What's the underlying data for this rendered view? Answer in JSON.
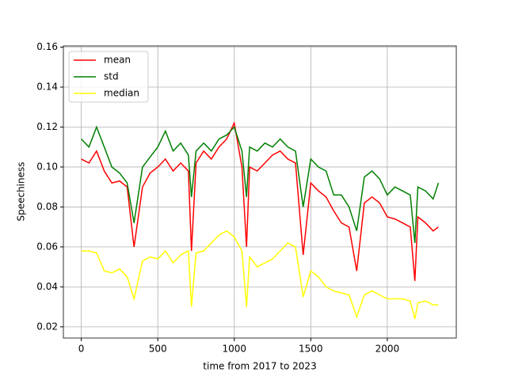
{
  "chart_data": {
    "type": "line",
    "x_label": "time from 2017 to 2023",
    "y_label": "Speechiness",
    "x": [
      0,
      50,
      100,
      150,
      200,
      250,
      300,
      345,
      400,
      450,
      500,
      550,
      600,
      650,
      700,
      720,
      750,
      800,
      850,
      900,
      950,
      1000,
      1050,
      1080,
      1100,
      1150,
      1200,
      1250,
      1300,
      1350,
      1400,
      1450,
      1500,
      1550,
      1600,
      1650,
      1700,
      1750,
      1800,
      1850,
      1900,
      1950,
      2000,
      2050,
      2100,
      2150,
      2180,
      2200,
      2250,
      2300,
      2334
    ],
    "series": [
      {
        "name": "mean",
        "color": "#ff0000",
        "values": [
          0.104,
          0.102,
          0.108,
          0.098,
          0.092,
          0.093,
          0.09,
          0.06,
          0.09,
          0.097,
          0.1,
          0.104,
          0.098,
          0.102,
          0.098,
          0.058,
          0.102,
          0.108,
          0.104,
          0.11,
          0.114,
          0.122,
          0.1,
          0.06,
          0.1,
          0.098,
          0.102,
          0.106,
          0.108,
          0.104,
          0.102,
          0.056,
          0.092,
          0.088,
          0.085,
          0.078,
          0.072,
          0.07,
          0.048,
          0.082,
          0.085,
          0.082,
          0.075,
          0.074,
          0.072,
          0.07,
          0.043,
          0.075,
          0.072,
          0.068,
          0.07
        ]
      },
      {
        "name": "std",
        "color": "#008000",
        "values": [
          0.114,
          0.11,
          0.12,
          0.11,
          0.1,
          0.097,
          0.092,
          0.072,
          0.1,
          0.105,
          0.11,
          0.118,
          0.108,
          0.112,
          0.106,
          0.085,
          0.108,
          0.112,
          0.108,
          0.114,
          0.116,
          0.12,
          0.108,
          0.085,
          0.11,
          0.108,
          0.112,
          0.11,
          0.114,
          0.11,
          0.108,
          0.08,
          0.104,
          0.1,
          0.098,
          0.086,
          0.086,
          0.08,
          0.068,
          0.095,
          0.098,
          0.094,
          0.086,
          0.09,
          0.088,
          0.086,
          0.062,
          0.09,
          0.088,
          0.084,
          0.092
        ]
      },
      {
        "name": "median",
        "color": "#ffff00",
        "values": [
          0.058,
          0.058,
          0.057,
          0.048,
          0.047,
          0.049,
          0.045,
          0.034,
          0.053,
          0.055,
          0.054,
          0.058,
          0.052,
          0.056,
          0.058,
          0.03,
          0.057,
          0.058,
          0.062,
          0.066,
          0.068,
          0.065,
          0.058,
          0.03,
          0.055,
          0.05,
          0.052,
          0.054,
          0.058,
          0.062,
          0.06,
          0.035,
          0.048,
          0.045,
          0.04,
          0.038,
          0.037,
          0.036,
          0.025,
          0.036,
          0.038,
          0.036,
          0.034,
          0.034,
          0.034,
          0.033,
          0.024,
          0.032,
          0.033,
          0.031,
          0.031
        ]
      }
    ],
    "xlim": [
      -117,
      2451
    ],
    "ylim": [
      0.0144,
      0.1606
    ],
    "xticks": [
      0,
      500,
      1000,
      1500,
      2000
    ],
    "yticks": [
      0.02,
      0.04,
      0.06,
      0.08,
      {
        "value": 0.1,
        "label": "0.10"
      },
      0.12,
      0.14,
      0.16
    ],
    "grid": true,
    "legend": "upper left"
  }
}
